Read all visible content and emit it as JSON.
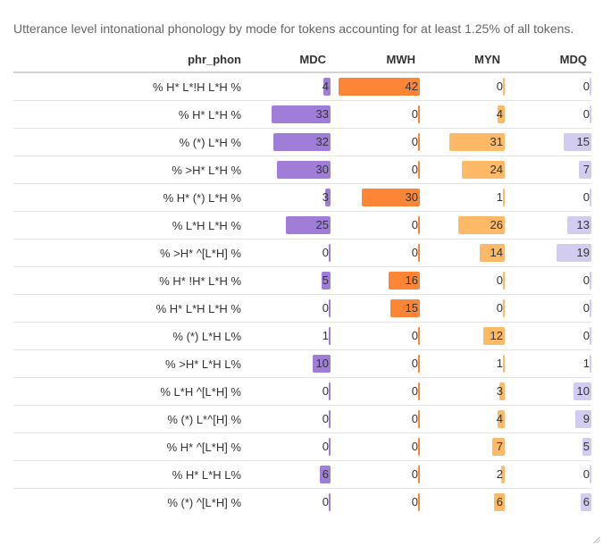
{
  "caption": "Utterance level intonational phonology by mode for tokens accounting for at least 1.25% of all tokens.",
  "chart_data": {
    "type": "table",
    "title": "Utterance level intonational phonology by mode for tokens accounting for at least 1.25% of all tokens.",
    "row_header": "phr_phon",
    "columns": [
      {
        "key": "MDC",
        "label": "MDC",
        "color": "#a07ed8",
        "max": 42
      },
      {
        "key": "MWH",
        "label": "MWH",
        "color": "#fd8535",
        "max": 42
      },
      {
        "key": "MYN",
        "label": "MYN",
        "color": "#fdb965",
        "max": 42
      },
      {
        "key": "MDQ",
        "label": "MDQ",
        "color": "#d2cdf0",
        "max": 42
      }
    ],
    "rows": [
      {
        "phr_phon": "% H* L*!H L*H %",
        "MDC": 4,
        "MWH": 42,
        "MYN": 0,
        "MDQ": 0
      },
      {
        "phr_phon": "% H* L*H %",
        "MDC": 33,
        "MWH": 0,
        "MYN": 4,
        "MDQ": 0
      },
      {
        "phr_phon": "% (*) L*H %",
        "MDC": 32,
        "MWH": 0,
        "MYN": 31,
        "MDQ": 15
      },
      {
        "phr_phon": "% >H* L*H %",
        "MDC": 30,
        "MWH": 0,
        "MYN": 24,
        "MDQ": 7
      },
      {
        "phr_phon": "% H* (*) L*H %",
        "MDC": 3,
        "MWH": 30,
        "MYN": 1,
        "MDQ": 0
      },
      {
        "phr_phon": "% L*H L*H %",
        "MDC": 25,
        "MWH": 0,
        "MYN": 26,
        "MDQ": 13
      },
      {
        "phr_phon": "% >H* ^[L*H] %",
        "MDC": 0,
        "MWH": 0,
        "MYN": 14,
        "MDQ": 19
      },
      {
        "phr_phon": "% H* !H* L*H %",
        "MDC": 5,
        "MWH": 16,
        "MYN": 0,
        "MDQ": 0
      },
      {
        "phr_phon": "% H* L*H L*H %",
        "MDC": 0,
        "MWH": 15,
        "MYN": 0,
        "MDQ": 0
      },
      {
        "phr_phon": "% (*) L*H L%",
        "MDC": 1,
        "MWH": 0,
        "MYN": 12,
        "MDQ": 0
      },
      {
        "phr_phon": "% >H* L*H L%",
        "MDC": 10,
        "MWH": 0,
        "MYN": 1,
        "MDQ": 1
      },
      {
        "phr_phon": "% L*H ^[L*H] %",
        "MDC": 0,
        "MWH": 0,
        "MYN": 3,
        "MDQ": 10
      },
      {
        "phr_phon": "% (*) L*^[H] %",
        "MDC": 0,
        "MWH": 0,
        "MYN": 4,
        "MDQ": 9
      },
      {
        "phr_phon": "% H* ^[L*H] %",
        "MDC": 0,
        "MWH": 0,
        "MYN": 7,
        "MDQ": 5
      },
      {
        "phr_phon": "% H* L*H L%",
        "MDC": 6,
        "MWH": 0,
        "MYN": 2,
        "MDQ": 0
      },
      {
        "phr_phon": "% (*) ^[L*H] %",
        "MDC": 0,
        "MWH": 0,
        "MYN": 6,
        "MDQ": 6
      }
    ]
  }
}
